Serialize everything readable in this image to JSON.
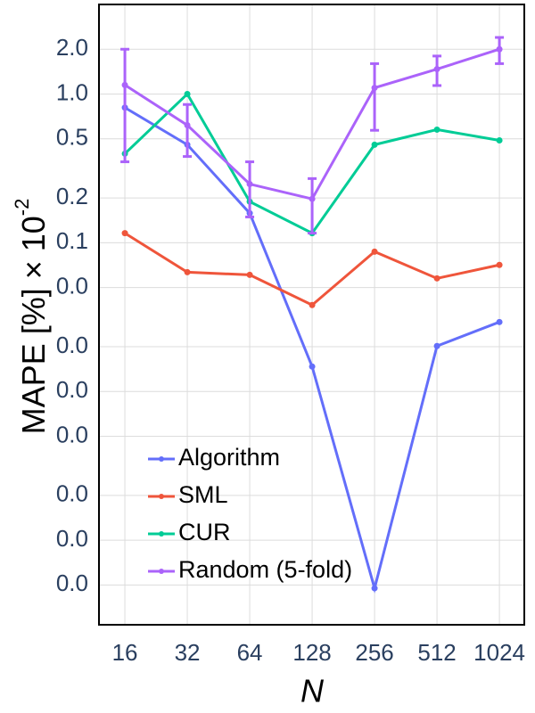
{
  "chart_data": {
    "type": "line",
    "xlabel": "N",
    "ylabel": "MAPE [%] × 10",
    "ylabel_superscript": "-2",
    "x": [
      16,
      32,
      64,
      128,
      256,
      512,
      1024
    ],
    "xscale": "log",
    "yscale": "log",
    "grid": true,
    "legend": "lower left",
    "xlim": [
      12,
      1350
    ],
    "ylim": [
      0.00027,
      4
    ],
    "xticks": [
      16,
      32,
      64,
      128,
      256,
      512,
      1024
    ],
    "yticks": [
      {
        "value": 2,
        "label": "2.0"
      },
      {
        "value": 1,
        "label": "1.0"
      },
      0.5,
      0.2,
      0.1,
      {
        "value": 0.05,
        "label": "0.0"
      },
      {
        "value": 0.02,
        "label": "0.0"
      },
      {
        "value": 0.01,
        "label": "0.0"
      },
      {
        "value": 0.005,
        "label": "0.0"
      },
      {
        "value": 0.002,
        "label": "0.0"
      },
      {
        "value": 0.001,
        "label": "0.0"
      },
      {
        "value": 0.0005,
        "label": "0.0"
      }
    ],
    "series": [
      {
        "name": "Algorithm",
        "color": "#636efa",
        "values": [
          0.81,
          0.456,
          0.158,
          0.0147,
          0.000475,
          0.0202,
          0.0293
        ]
      },
      {
        "name": "SML",
        "color": "#ef553b",
        "values": [
          0.116,
          0.0634,
          0.0608,
          0.0381,
          0.0871,
          0.0576,
          0.0709
        ]
      },
      {
        "name": "CUR",
        "color": "#00cc96",
        "values": [
          0.397,
          1.0,
          0.189,
          0.116,
          0.456,
          0.576,
          0.488
        ]
      },
      {
        "name": "Random (5-fold)",
        "color": "#ab63fa",
        "values": [
          1.15,
          0.617,
          0.248,
          0.197,
          1.1,
          1.47,
          2.0
        ],
        "error_high": [
          2.0,
          0.85,
          0.35,
          0.27,
          1.6,
          1.8,
          2.4
        ],
        "error_low": [
          0.35,
          0.38,
          0.149,
          0.116,
          0.57,
          1.14,
          1.6
        ]
      }
    ]
  }
}
